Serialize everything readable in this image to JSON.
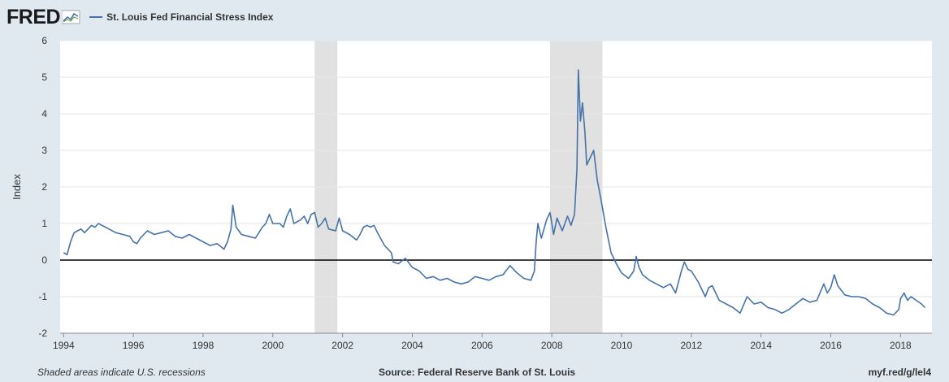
{
  "header": {
    "logo_text": "FRED",
    "legend_label": "St. Louis Fed Financial Stress Index"
  },
  "footer": {
    "note": "Shaded areas indicate U.S. recessions",
    "source": "Source: Federal Reserve Bank of St. Louis",
    "link": "myf.red/g/lel4"
  },
  "colors": {
    "series": "#4572a7",
    "recession": "#e1e1e1",
    "background": "#e1e9f0",
    "plot": "#ffffff",
    "zero_line": "#000000"
  },
  "chart_data": {
    "type": "line",
    "ylabel": "Index",
    "xlabel": "",
    "xlim": [
      1993.9,
      2018.9
    ],
    "ylim": [
      -2,
      6
    ],
    "x_ticks": [
      1994,
      1996,
      1998,
      2000,
      2002,
      2004,
      2006,
      2008,
      2010,
      2012,
      2014,
      2016,
      2018
    ],
    "y_ticks": [
      -2,
      -1,
      0,
      1,
      2,
      3,
      4,
      5,
      6
    ],
    "grid": "horizontal",
    "recessions": [
      [
        2001.2,
        2001.85
      ],
      [
        2007.95,
        2009.45
      ]
    ],
    "reference_line": 0,
    "series": [
      {
        "name": "St. Louis Fed Financial Stress Index",
        "points": [
          [
            1994.0,
            0.2
          ],
          [
            1994.1,
            0.15
          ],
          [
            1994.2,
            0.5
          ],
          [
            1994.3,
            0.75
          ],
          [
            1994.4,
            0.8
          ],
          [
            1994.5,
            0.85
          ],
          [
            1994.6,
            0.75
          ],
          [
            1994.7,
            0.85
          ],
          [
            1994.8,
            0.95
          ],
          [
            1994.9,
            0.9
          ],
          [
            1995.0,
            1.0
          ],
          [
            1995.1,
            0.95
          ],
          [
            1995.2,
            0.9
          ],
          [
            1995.3,
            0.85
          ],
          [
            1995.5,
            0.75
          ],
          [
            1995.7,
            0.7
          ],
          [
            1995.9,
            0.65
          ],
          [
            1996.0,
            0.5
          ],
          [
            1996.1,
            0.45
          ],
          [
            1996.2,
            0.6
          ],
          [
            1996.4,
            0.8
          ],
          [
            1996.6,
            0.7
          ],
          [
            1996.8,
            0.75
          ],
          [
            1997.0,
            0.8
          ],
          [
            1997.2,
            0.65
          ],
          [
            1997.4,
            0.6
          ],
          [
            1997.6,
            0.7
          ],
          [
            1997.8,
            0.6
          ],
          [
            1998.0,
            0.5
          ],
          [
            1998.2,
            0.4
          ],
          [
            1998.4,
            0.45
          ],
          [
            1998.6,
            0.3
          ],
          [
            1998.7,
            0.5
          ],
          [
            1998.8,
            0.85
          ],
          [
            1998.85,
            1.5
          ],
          [
            1998.95,
            0.9
          ],
          [
            1999.1,
            0.7
          ],
          [
            1999.3,
            0.65
          ],
          [
            1999.5,
            0.6
          ],
          [
            1999.7,
            0.9
          ],
          [
            1999.8,
            1.0
          ],
          [
            1999.9,
            1.25
          ],
          [
            2000.0,
            1.0
          ],
          [
            2000.2,
            1.0
          ],
          [
            2000.3,
            0.9
          ],
          [
            2000.4,
            1.2
          ],
          [
            2000.5,
            1.4
          ],
          [
            2000.6,
            1.0
          ],
          [
            2000.8,
            1.1
          ],
          [
            2000.9,
            1.2
          ],
          [
            2001.0,
            1.0
          ],
          [
            2001.1,
            1.25
          ],
          [
            2001.2,
            1.3
          ],
          [
            2001.3,
            0.9
          ],
          [
            2001.4,
            1.0
          ],
          [
            2001.5,
            1.15
          ],
          [
            2001.6,
            0.85
          ],
          [
            2001.8,
            0.8
          ],
          [
            2001.9,
            1.15
          ],
          [
            2002.0,
            0.8
          ],
          [
            2002.2,
            0.7
          ],
          [
            2002.4,
            0.55
          ],
          [
            2002.5,
            0.7
          ],
          [
            2002.6,
            0.9
          ],
          [
            2002.7,
            0.95
          ],
          [
            2002.8,
            0.9
          ],
          [
            2002.9,
            0.95
          ],
          [
            2003.0,
            0.75
          ],
          [
            2003.2,
            0.4
          ],
          [
            2003.4,
            0.2
          ],
          [
            2003.45,
            -0.05
          ],
          [
            2003.6,
            -0.1
          ],
          [
            2003.8,
            0.05
          ],
          [
            2004.0,
            -0.2
          ],
          [
            2004.2,
            -0.3
          ],
          [
            2004.4,
            -0.5
          ],
          [
            2004.6,
            -0.45
          ],
          [
            2004.8,
            -0.55
          ],
          [
            2005.0,
            -0.5
          ],
          [
            2005.2,
            -0.6
          ],
          [
            2005.4,
            -0.65
          ],
          [
            2005.6,
            -0.6
          ],
          [
            2005.8,
            -0.45
          ],
          [
            2006.0,
            -0.5
          ],
          [
            2006.2,
            -0.55
          ],
          [
            2006.4,
            -0.45
          ],
          [
            2006.6,
            -0.4
          ],
          [
            2006.8,
            -0.15
          ],
          [
            2007.0,
            -0.35
          ],
          [
            2007.2,
            -0.5
          ],
          [
            2007.4,
            -0.55
          ],
          [
            2007.5,
            -0.3
          ],
          [
            2007.55,
            0.5
          ],
          [
            2007.6,
            1.0
          ],
          [
            2007.7,
            0.6
          ],
          [
            2007.85,
            1.1
          ],
          [
            2007.95,
            1.3
          ],
          [
            2008.05,
            0.7
          ],
          [
            2008.15,
            1.15
          ],
          [
            2008.3,
            0.8
          ],
          [
            2008.45,
            1.2
          ],
          [
            2008.55,
            0.95
          ],
          [
            2008.65,
            1.25
          ],
          [
            2008.72,
            2.5
          ],
          [
            2008.76,
            5.2
          ],
          [
            2008.82,
            3.8
          ],
          [
            2008.88,
            4.3
          ],
          [
            2008.95,
            3.5
          ],
          [
            2009.0,
            2.6
          ],
          [
            2009.1,
            2.8
          ],
          [
            2009.2,
            3.0
          ],
          [
            2009.3,
            2.2
          ],
          [
            2009.4,
            1.7
          ],
          [
            2009.55,
            0.9
          ],
          [
            2009.7,
            0.2
          ],
          [
            2009.85,
            -0.1
          ],
          [
            2010.0,
            -0.35
          ],
          [
            2010.2,
            -0.5
          ],
          [
            2010.35,
            -0.3
          ],
          [
            2010.42,
            0.1
          ],
          [
            2010.5,
            -0.2
          ],
          [
            2010.6,
            -0.4
          ],
          [
            2010.8,
            -0.55
          ],
          [
            2011.0,
            -0.65
          ],
          [
            2011.2,
            -0.75
          ],
          [
            2011.4,
            -0.65
          ],
          [
            2011.55,
            -0.9
          ],
          [
            2011.7,
            -0.35
          ],
          [
            2011.8,
            -0.05
          ],
          [
            2011.9,
            -0.25
          ],
          [
            2012.0,
            -0.3
          ],
          [
            2012.2,
            -0.6
          ],
          [
            2012.4,
            -1.0
          ],
          [
            2012.5,
            -0.75
          ],
          [
            2012.6,
            -0.7
          ],
          [
            2012.8,
            -1.1
          ],
          [
            2013.0,
            -1.2
          ],
          [
            2013.2,
            -1.3
          ],
          [
            2013.4,
            -1.45
          ],
          [
            2013.6,
            -1.0
          ],
          [
            2013.8,
            -1.2
          ],
          [
            2014.0,
            -1.15
          ],
          [
            2014.2,
            -1.3
          ],
          [
            2014.4,
            -1.35
          ],
          [
            2014.6,
            -1.45
          ],
          [
            2014.8,
            -1.35
          ],
          [
            2015.0,
            -1.2
          ],
          [
            2015.2,
            -1.05
          ],
          [
            2015.4,
            -1.15
          ],
          [
            2015.6,
            -1.1
          ],
          [
            2015.8,
            -0.65
          ],
          [
            2015.9,
            -0.9
          ],
          [
            2016.0,
            -0.75
          ],
          [
            2016.1,
            -0.4
          ],
          [
            2016.2,
            -0.7
          ],
          [
            2016.4,
            -0.95
          ],
          [
            2016.6,
            -1.0
          ],
          [
            2016.8,
            -1.0
          ],
          [
            2017.0,
            -1.05
          ],
          [
            2017.2,
            -1.2
          ],
          [
            2017.4,
            -1.3
          ],
          [
            2017.6,
            -1.45
          ],
          [
            2017.8,
            -1.5
          ],
          [
            2017.95,
            -1.35
          ],
          [
            2018.0,
            -1.05
          ],
          [
            2018.1,
            -0.9
          ],
          [
            2018.2,
            -1.1
          ],
          [
            2018.3,
            -1.0
          ],
          [
            2018.45,
            -1.1
          ],
          [
            2018.6,
            -1.2
          ],
          [
            2018.7,
            -1.3
          ]
        ]
      }
    ]
  }
}
